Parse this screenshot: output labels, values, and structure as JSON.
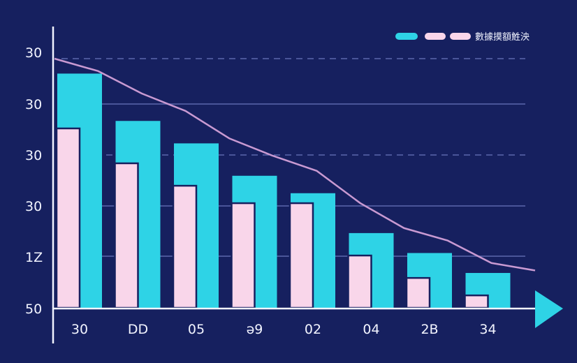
{
  "colors": {
    "background": "#16205f",
    "series_a": "#2ed3e6",
    "series_b": "#f9d6ea",
    "trend": "#c99ad2",
    "grid": "#4a5599",
    "axis": "#f2f4ff",
    "arrow": "#2ed3e6"
  },
  "legend": {
    "label": "數據摸額鮏泱"
  },
  "chart_data": {
    "type": "bar",
    "categories": [
      "30",
      "DD",
      "05",
      "ǝ9",
      "02",
      "04",
      "2B",
      "34"
    ],
    "y_tick_labels": [
      "30",
      "30",
      "30",
      "30",
      "1Z",
      "50"
    ],
    "series": [
      {
        "values": [
          94,
          75,
          66,
          53,
          46,
          30,
          22,
          14
        ]
      },
      {
        "values": [
          72,
          58,
          49,
          42,
          42,
          21,
          12,
          5
        ]
      }
    ],
    "trend_line": [
      100,
      95,
      86,
      79,
      68,
      61,
      55,
      42,
      32,
      27,
      18,
      15
    ],
    "ylim": [
      0,
      100
    ],
    "grid": true,
    "legend_position": "top-right"
  }
}
